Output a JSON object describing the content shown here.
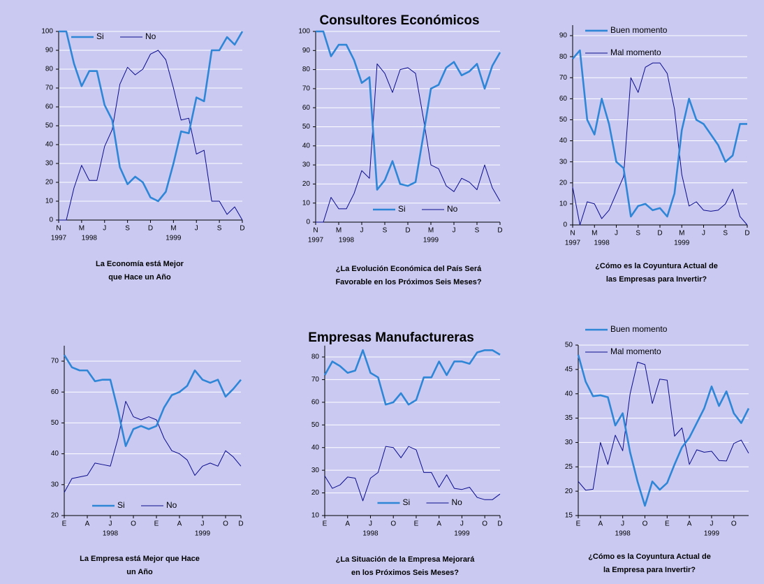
{
  "headings": [
    "Consultores Económicos",
    "Empresas Manufactureras"
  ],
  "chart_data": [
    {
      "type": "line",
      "title": [
        "La Economía está Mejor",
        "que Hace un Año"
      ],
      "categories": [
        "N",
        null,
        null,
        "M",
        null,
        null,
        "J",
        null,
        null,
        "S",
        null,
        null,
        "D",
        null,
        null,
        "M",
        null,
        null,
        "J",
        null,
        null,
        "S",
        null,
        null,
        "D"
      ],
      "years": [
        "1997",
        null,
        null,
        null,
        "1998",
        null,
        null,
        null,
        null,
        null,
        null,
        null,
        null,
        null,
        null,
        "1999",
        null,
        null,
        null,
        null,
        null,
        null,
        null,
        null,
        null
      ],
      "ylim": [
        0,
        100
      ],
      "yticks": [
        0,
        10,
        20,
        30,
        40,
        50,
        60,
        70,
        80,
        90,
        100
      ],
      "grid": true,
      "legend": "upper left",
      "series": [
        {
          "name": "Si",
          "color": "#2f86d6",
          "values": [
            100,
            100,
            83,
            71,
            79,
            79,
            61,
            53,
            28,
            19,
            23,
            20,
            12,
            10,
            15,
            30,
            47,
            46,
            65,
            63,
            90,
            90,
            97,
            93,
            100
          ]
        },
        {
          "name": "No",
          "color": "#0b0b8c",
          "values": [
            0,
            0,
            17,
            29,
            21,
            21,
            39,
            48,
            72,
            81,
            77,
            80,
            88,
            90,
            85,
            70,
            53,
            54,
            35,
            37,
            10,
            10,
            3,
            7,
            0
          ]
        }
      ]
    },
    {
      "type": "line",
      "title": [
        "¿La Evolución Económica del País Será",
        "Favorable en los Próximos Seis Meses?"
      ],
      "categories": [
        "N",
        null,
        null,
        "M",
        null,
        null,
        "J",
        null,
        null,
        "S",
        null,
        null,
        "D",
        null,
        null,
        "M",
        null,
        null,
        "J",
        null,
        null,
        "S",
        null,
        null,
        "D"
      ],
      "years": [
        "1997",
        null,
        null,
        null,
        "1998",
        null,
        null,
        null,
        null,
        null,
        null,
        null,
        null,
        null,
        null,
        "1999",
        null,
        null,
        null,
        null,
        null,
        null,
        null,
        null,
        null
      ],
      "ylim": [
        0,
        100
      ],
      "yticks": [
        0,
        10,
        20,
        30,
        40,
        50,
        60,
        70,
        80,
        90,
        100
      ],
      "grid": true,
      "legend": "lower center",
      "series": [
        {
          "name": "Si",
          "color": "#2f86d6",
          "values": [
            100,
            100,
            87,
            93,
            93,
            85,
            73,
            76,
            17,
            22,
            32,
            20,
            19,
            21,
            45,
            70,
            72,
            81,
            84,
            77,
            79,
            83,
            70,
            82,
            89
          ]
        },
        {
          "name": "No",
          "color": "#0b0b8c",
          "values": [
            0,
            0,
            13,
            7,
            7,
            15,
            27,
            23,
            83,
            78,
            68,
            80,
            81,
            78,
            55,
            30,
            28,
            19,
            16,
            23,
            21,
            17,
            30,
            18,
            11
          ]
        }
      ]
    },
    {
      "type": "line",
      "title": [
        "¿Cómo es la Coyuntura Actual de",
        "las Empresas para Invertir?"
      ],
      "categories": [
        "N",
        null,
        null,
        "M",
        null,
        null,
        "J",
        null,
        null,
        "S",
        null,
        null,
        "D",
        null,
        null,
        "M",
        null,
        null,
        "J",
        null,
        null,
        "S",
        null,
        null,
        "D"
      ],
      "years": [
        "1997",
        null,
        null,
        null,
        "1998",
        null,
        null,
        null,
        null,
        null,
        null,
        null,
        null,
        null,
        null,
        "1999",
        null,
        null,
        null,
        null,
        null,
        null,
        null,
        null,
        null
      ],
      "ylim": [
        0,
        95
      ],
      "yticks": [
        0,
        10,
        20,
        30,
        40,
        50,
        60,
        70,
        80,
        90
      ],
      "grid": true,
      "legend": "upper left",
      "series": [
        {
          "name": "Buen momento",
          "color": "#2f86d6",
          "values": [
            79,
            83,
            50,
            43,
            60,
            48,
            30,
            27,
            4,
            9,
            10,
            7,
            8,
            4,
            15,
            45,
            60,
            50,
            48,
            43,
            38,
            30,
            33,
            48,
            48
          ]
        },
        {
          "name": "Mal momento",
          "color": "#0b0b8c",
          "values": [
            18,
            0,
            11,
            10,
            3,
            7,
            15,
            23,
            70,
            63,
            75,
            77,
            77,
            72,
            55,
            24,
            9,
            11,
            7,
            6.5,
            7,
            10,
            17,
            4,
            0
          ]
        }
      ]
    },
    {
      "type": "line",
      "title": [
        "La Empresa está Mejor que Hace",
        "un Año"
      ],
      "categories": [
        "E",
        null,
        null,
        "A",
        null,
        null,
        "J",
        null,
        null,
        "O",
        null,
        null,
        "E",
        null,
        null,
        "A",
        null,
        null,
        "J",
        null,
        null,
        "O",
        null,
        "D"
      ],
      "years": [
        null,
        null,
        null,
        null,
        null,
        null,
        "1998",
        null,
        null,
        null,
        null,
        null,
        null,
        null,
        null,
        null,
        null,
        null,
        "1999",
        null,
        null,
        null,
        null,
        null
      ],
      "ylim": [
        20,
        75
      ],
      "yticks": [
        20,
        30,
        40,
        50,
        60,
        70
      ],
      "grid": true,
      "legend": "lower left",
      "series": [
        {
          "name": "Si",
          "color": "#2f86d6",
          "values": [
            72,
            68,
            67,
            67,
            63.5,
            64,
            64,
            54,
            42.5,
            48,
            49,
            48,
            49,
            55,
            59,
            60,
            62,
            67,
            64,
            63,
            64,
            58.5,
            61,
            64
          ]
        },
        {
          "name": "No",
          "color": "#0b0b8c",
          "values": [
            27.5,
            32,
            32.5,
            33,
            37,
            36.5,
            36,
            45,
            57,
            52,
            51,
            52,
            51,
            45,
            41,
            40,
            38,
            33,
            36,
            37,
            36,
            41,
            39,
            36
          ]
        }
      ]
    },
    {
      "type": "line",
      "title": [
        "¿La Situación de la Empresa Mejorará",
        "en los Próximos Seis Meses?"
      ],
      "categories": [
        "E",
        null,
        null,
        "A",
        null,
        null,
        "J",
        null,
        null,
        "O",
        null,
        null,
        "E",
        null,
        null,
        "A",
        null,
        null,
        "J",
        null,
        null,
        "O",
        null,
        "D"
      ],
      "years": [
        null,
        null,
        null,
        null,
        null,
        null,
        "1998",
        null,
        null,
        null,
        null,
        null,
        null,
        null,
        null,
        null,
        null,
        null,
        "1999",
        null,
        null,
        null,
        null,
        null
      ],
      "ylim": [
        10,
        85
      ],
      "yticks": [
        10,
        20,
        30,
        40,
        50,
        60,
        70,
        80
      ],
      "grid": true,
      "legend": "lower center",
      "series": [
        {
          "name": "Si",
          "color": "#2f86d6",
          "values": [
            72,
            78,
            76,
            73,
            74,
            83,
            73,
            71,
            59,
            60,
            64,
            59,
            61,
            71,
            71,
            78,
            72,
            78,
            78,
            77,
            82,
            83,
            83,
            81
          ]
        },
        {
          "name": "No",
          "color": "#0b0b8c",
          "values": [
            27.5,
            22,
            23.5,
            27,
            26.5,
            16.5,
            26.5,
            29,
            40.5,
            40,
            35.5,
            40.5,
            39,
            29,
            29,
            22.5,
            28,
            22,
            21.5,
            22.5,
            18,
            17,
            17,
            19.5
          ]
        }
      ]
    },
    {
      "type": "line",
      "title": [
        "¿Cómo es la Coyuntura Actual de",
        "la Empresa para Invertir?"
      ],
      "categories": [
        "E",
        null,
        null,
        "A",
        null,
        null,
        "J",
        null,
        null,
        "O",
        null,
        null,
        "E",
        null,
        null,
        "A",
        null,
        null,
        "J",
        null,
        null,
        "O",
        null,
        null
      ],
      "years": [
        null,
        null,
        null,
        null,
        null,
        null,
        "1998",
        null,
        null,
        null,
        null,
        null,
        null,
        null,
        null,
        null,
        null,
        null,
        "1999",
        null,
        null,
        null,
        null,
        null
      ],
      "ylim": [
        15,
        50
      ],
      "yticks": [
        15,
        20,
        25,
        30,
        35,
        40,
        45,
        50
      ],
      "grid": true,
      "legend": "top",
      "series": [
        {
          "name": "Buen momento",
          "color": "#2f86d6",
          "values": [
            48,
            42.5,
            39.5,
            39.7,
            39.3,
            33.5,
            36,
            28,
            22,
            17,
            22,
            20.3,
            21.7,
            25.5,
            29,
            31,
            34,
            37,
            41.5,
            37.5,
            40.5,
            36,
            34,
            37
          ]
        },
        {
          "name": "Mal momento",
          "color": "#0b0b8c",
          "values": [
            22,
            20.2,
            20.4,
            30,
            25.5,
            31.5,
            28.3,
            40,
            46.5,
            46,
            38,
            43,
            42.8,
            31.3,
            33,
            25.5,
            28.5,
            28,
            28.2,
            26.3,
            26.2,
            29.8,
            30.5,
            27.8
          ]
        }
      ]
    }
  ]
}
